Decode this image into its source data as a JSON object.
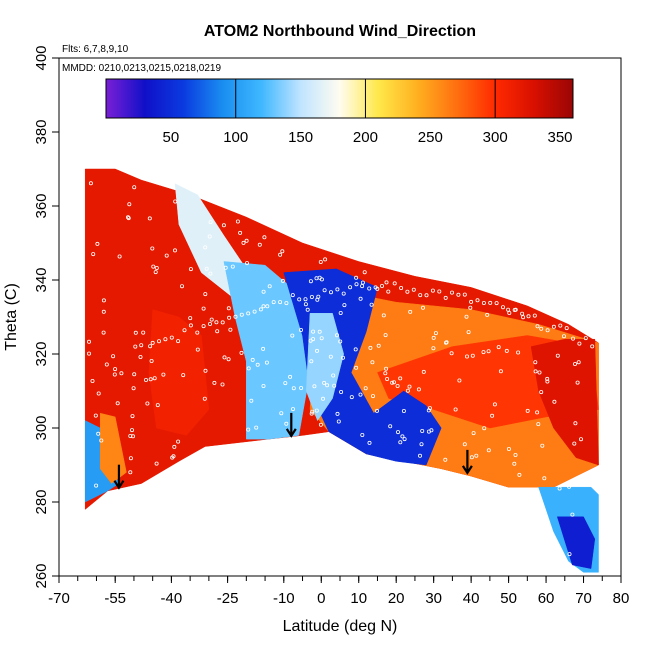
{
  "chart_data": {
    "type": "heatmap",
    "title": "ATOM2 Northbound Wind_Direction",
    "annotations": {
      "flights": "Flts: 6,7,8,9,10",
      "dates": "MMDD: 0210,0213,0215,0218,0219"
    },
    "xlabel": "Latitude (deg N)",
    "ylabel": "Theta (C)",
    "xlim": [
      -70,
      80
    ],
    "ylim": [
      260,
      400
    ],
    "x_ticks": [
      -70,
      -55,
      -40,
      -25,
      -10,
      0,
      10,
      20,
      30,
      40,
      50,
      60,
      70,
      80
    ],
    "x_minor_step": 5,
    "y_ticks": [
      260,
      280,
      300,
      320,
      340,
      360,
      380,
      400
    ],
    "colorbar": {
      "range": [
        0,
        360
      ],
      "ticks": [
        50,
        100,
        150,
        200,
        250,
        300,
        350
      ],
      "palette": [
        "#7a1fd6",
        "#1010c8",
        "#0a3be0",
        "#1a8ef0",
        "#40b8ff",
        "#c0e4ff",
        "#fffcf0",
        "#ffe84a",
        "#ffb020",
        "#ff7010",
        "#ff2a00",
        "#d81000",
        "#9a0505"
      ]
    },
    "arrows": [
      {
        "lat": -54,
        "theta": 289
      },
      {
        "lat": -8,
        "theta": 303
      },
      {
        "lat": 39,
        "theta": 293
      }
    ],
    "envelope": {
      "top": [
        [
          -63,
          370
        ],
        [
          -55,
          370
        ],
        [
          -48,
          367
        ],
        [
          -35,
          363
        ],
        [
          -20,
          357
        ],
        [
          -5,
          350
        ],
        [
          10,
          345
        ],
        [
          25,
          341
        ],
        [
          40,
          338
        ],
        [
          55,
          333
        ],
        [
          66,
          328
        ],
        [
          72,
          324
        ],
        [
          74,
          323
        ]
      ],
      "bottom": [
        [
          -63,
          278
        ],
        [
          -57,
          283
        ],
        [
          -48,
          285
        ],
        [
          -38,
          291
        ],
        [
          -31,
          295
        ],
        [
          -14,
          297
        ],
        [
          -5,
          298
        ],
        [
          2,
          299
        ],
        [
          12,
          293
        ],
        [
          22,
          291
        ],
        [
          32,
          289
        ],
        [
          40,
          287
        ],
        [
          50,
          284
        ],
        [
          58,
          284
        ],
        [
          62,
          272
        ],
        [
          66,
          264
        ],
        [
          70,
          261
        ],
        [
          74,
          261
        ]
      ]
    },
    "regions": [
      {
        "value": 320,
        "points": [
          [
            -63,
            370
          ],
          [
            -55,
            370
          ],
          [
            -48,
            367
          ],
          [
            -35,
            363
          ],
          [
            -20,
            357
          ],
          [
            -5,
            350
          ],
          [
            10,
            345
          ],
          [
            25,
            341
          ],
          [
            40,
            338
          ],
          [
            55,
            333
          ],
          [
            66,
            328
          ],
          [
            74,
            323
          ],
          [
            74,
            290
          ],
          [
            62,
            284
          ],
          [
            50,
            284
          ],
          [
            40,
            287
          ],
          [
            32,
            289
          ],
          [
            22,
            291
          ],
          [
            12,
            293
          ],
          [
            2,
            299
          ],
          [
            -5,
            298
          ],
          [
            -14,
            297
          ],
          [
            -31,
            295
          ],
          [
            -38,
            291
          ],
          [
            -48,
            285
          ],
          [
            -57,
            283
          ],
          [
            -63,
            278
          ]
        ]
      },
      {
        "value": 265,
        "points": [
          [
            -10,
            337
          ],
          [
            5,
            337
          ],
          [
            20,
            334
          ],
          [
            40,
            332
          ],
          [
            58,
            328
          ],
          [
            74,
            323
          ],
          [
            74,
            290
          ],
          [
            62,
            284
          ],
          [
            50,
            284
          ],
          [
            40,
            287
          ],
          [
            32,
            289
          ],
          [
            22,
            291
          ],
          [
            12,
            293
          ],
          [
            2,
            299
          ],
          [
            -3,
            305
          ],
          [
            -2,
            320
          ],
          [
            -5,
            330
          ]
        ]
      },
      {
        "value": 295,
        "points": [
          [
            15,
            315
          ],
          [
            35,
            322
          ],
          [
            55,
            325
          ],
          [
            72,
            322
          ],
          [
            74,
            305
          ],
          [
            60,
            303
          ],
          [
            45,
            300
          ],
          [
            30,
            305
          ],
          [
            18,
            308
          ]
        ]
      },
      {
        "value": 325,
        "points": [
          [
            56,
            322
          ],
          [
            65,
            324
          ],
          [
            73,
            324
          ],
          [
            74,
            290
          ],
          [
            68,
            292
          ],
          [
            62,
            300
          ],
          [
            58,
            310
          ]
        ]
      },
      {
        "value": 165,
        "points": [
          [
            -39,
            366
          ],
          [
            -33,
            363
          ],
          [
            -26,
            352
          ],
          [
            -18,
            340
          ],
          [
            -22,
            334
          ],
          [
            -32,
            342
          ],
          [
            -38,
            355
          ]
        ]
      },
      {
        "value": 130,
        "points": [
          [
            -26,
            345
          ],
          [
            -15,
            344
          ],
          [
            -8,
            338
          ],
          [
            -5,
            333
          ],
          [
            -3,
            315
          ],
          [
            -6,
            298
          ],
          [
            -14,
            297
          ],
          [
            -20,
            297
          ],
          [
            -20,
            318
          ],
          [
            -23,
            330
          ]
        ]
      },
      {
        "value": 50,
        "points": [
          [
            -10,
            342
          ],
          [
            4,
            343
          ],
          [
            15,
            338
          ],
          [
            12,
            326
          ],
          [
            8,
            315
          ],
          [
            14,
            304
          ],
          [
            22,
            310
          ],
          [
            28,
            306
          ],
          [
            32,
            300
          ],
          [
            28,
            290
          ],
          [
            20,
            291
          ],
          [
            12,
            293
          ],
          [
            2,
            299
          ],
          [
            -3,
            310
          ],
          [
            -5,
            325
          ]
        ]
      },
      {
        "value": 140,
        "points": [
          [
            -3,
            331
          ],
          [
            3,
            331
          ],
          [
            6,
            320
          ],
          [
            3,
            308
          ],
          [
            -1,
            302
          ],
          [
            -4,
            310
          ]
        ]
      },
      {
        "value": 100,
        "points": [
          [
            -63,
            302
          ],
          [
            -59,
            300
          ],
          [
            -57,
            292
          ],
          [
            -54,
            285
          ],
          [
            -57,
            283
          ],
          [
            -63,
            280
          ]
        ]
      },
      {
        "value": 310,
        "points": [
          [
            -45,
            332
          ],
          [
            -38,
            330
          ],
          [
            -32,
            325
          ],
          [
            -30,
            305
          ],
          [
            -36,
            298
          ],
          [
            -44,
            300
          ],
          [
            -46,
            315
          ]
        ]
      },
      {
        "value": 115,
        "points": [
          [
            58,
            284
          ],
          [
            72,
            284
          ],
          [
            74,
            282
          ],
          [
            74,
            261
          ],
          [
            70,
            261
          ],
          [
            66,
            264
          ],
          [
            62,
            272
          ]
        ]
      },
      {
        "value": 40,
        "points": [
          [
            63,
            276
          ],
          [
            70,
            276
          ],
          [
            73,
            270
          ],
          [
            72,
            262
          ],
          [
            67,
            263
          ]
        ]
      },
      {
        "value": 260,
        "points": [
          [
            -59,
            304
          ],
          [
            -55,
            303
          ],
          [
            -52,
            288
          ],
          [
            -56,
            285
          ],
          [
            -59,
            289
          ]
        ]
      }
    ]
  }
}
